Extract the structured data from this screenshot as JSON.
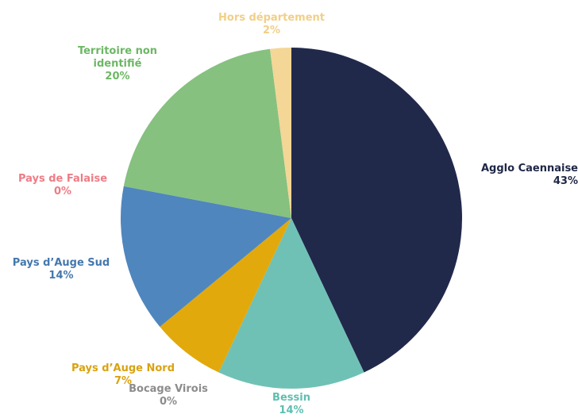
{
  "chart_data": {
    "type": "pie",
    "start": "top (12 o'clock), clockwise",
    "slices": [
      {
        "label": "Agglo Caennaise",
        "value": 43,
        "pct_label": "43%",
        "color": "#21294B",
        "label_color": "#1E2746"
      },
      {
        "label": "Bessin",
        "value": 14,
        "pct_label": "14%",
        "color": "#70C1B5",
        "label_color": "#5DBFB0"
      },
      {
        "label": "Bocage Virois",
        "value": 0,
        "pct_label": "0%",
        "color": "#9A9A9A",
        "label_color": "#8C8C8C"
      },
      {
        "label": "Pays d’Auge Nord",
        "value": 7,
        "pct_label": "7%",
        "color": "#E2A90C",
        "label_color": "#D9A20F"
      },
      {
        "label": "Pays d’Auge Sud",
        "value": 14,
        "pct_label": "14%",
        "color": "#4F86BE",
        "label_color": "#4478AD"
      },
      {
        "label": "Pays de Falaise",
        "value": 0,
        "pct_label": "0%",
        "color": "#F07C86",
        "label_color": "#EE7C86"
      },
      {
        "label": "Territoire non identifié",
        "label_lines": [
          "Territoire non",
          "identifié"
        ],
        "value": 20,
        "pct_label": "20%",
        "color": "#86C17F",
        "label_color": "#6DB765"
      },
      {
        "label": "Hors département",
        "value": 2,
        "pct_label": "2%",
        "color": "#F4D696",
        "label_color": "#F1CF86"
      }
    ]
  }
}
